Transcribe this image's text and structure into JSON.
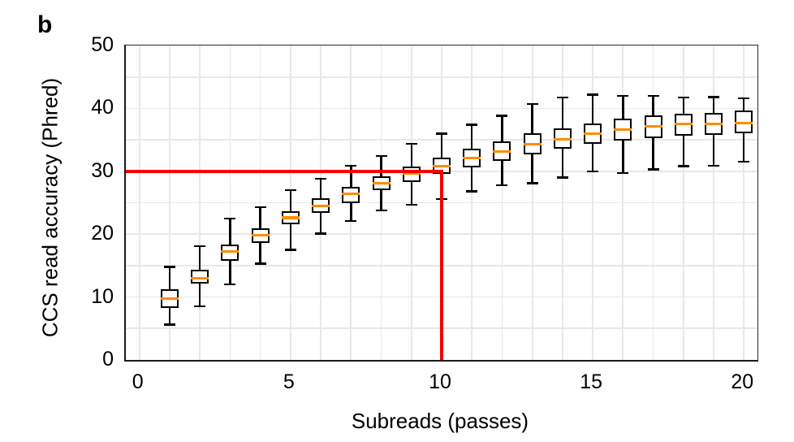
{
  "panel_label": "b",
  "chart_data": {
    "type": "box",
    "title": "",
    "xlabel": "Subreads (passes)",
    "ylabel": "CCS read accuracy (Phred)",
    "xlim": [
      -0.45,
      20.45
    ],
    "ylim": [
      0,
      50
    ],
    "x_ticks": [
      0,
      5,
      10,
      15,
      20
    ],
    "y_ticks": [
      0,
      10,
      20,
      30,
      40,
      50
    ],
    "grid": {
      "vertical_step": 1,
      "horizontal_step": 5,
      "color": "#e9e7e7"
    },
    "legend": "none",
    "boxes": [
      {
        "x": 1,
        "whisker_low": 5.6,
        "q1": 8.3,
        "median": 9.8,
        "q3": 11.2,
        "whisker_high": 14.8
      },
      {
        "x": 2,
        "whisker_low": 8.5,
        "q1": 12.1,
        "median": 13.0,
        "q3": 14.4,
        "whisker_high": 18.1
      },
      {
        "x": 3,
        "whisker_low": 12.0,
        "q1": 15.7,
        "median": 17.2,
        "q3": 18.4,
        "whisker_high": 22.5
      },
      {
        "x": 4,
        "whisker_low": 15.3,
        "q1": 18.6,
        "median": 19.8,
        "q3": 20.9,
        "whisker_high": 24.3
      },
      {
        "x": 5,
        "whisker_low": 17.5,
        "q1": 21.6,
        "median": 22.6,
        "q3": 23.7,
        "whisker_high": 27.0
      },
      {
        "x": 6,
        "whisker_low": 20.1,
        "q1": 23.4,
        "median": 24.5,
        "q3": 25.7,
        "whisker_high": 28.8
      },
      {
        "x": 7,
        "whisker_low": 22.1,
        "q1": 24.9,
        "median": 26.4,
        "q3": 27.5,
        "whisker_high": 30.9
      },
      {
        "x": 8,
        "whisker_low": 23.8,
        "q1": 27.0,
        "median": 28.1,
        "q3": 29.2,
        "whisker_high": 32.4
      },
      {
        "x": 9,
        "whisker_low": 24.7,
        "q1": 28.3,
        "median": 29.6,
        "q3": 30.8,
        "whisker_high": 34.4
      },
      {
        "x": 10,
        "whisker_low": 25.6,
        "q1": 29.6,
        "median": 30.8,
        "q3": 32.2,
        "whisker_high": 36.0
      },
      {
        "x": 11,
        "whisker_low": 26.8,
        "q1": 30.6,
        "median": 32.1,
        "q3": 33.6,
        "whisker_high": 37.4
      },
      {
        "x": 12,
        "whisker_low": 27.8,
        "q1": 31.7,
        "median": 33.1,
        "q3": 34.8,
        "whisker_high": 38.8
      },
      {
        "x": 13,
        "whisker_low": 28.1,
        "q1": 32.7,
        "median": 34.3,
        "q3": 36.0,
        "whisker_high": 40.7
      },
      {
        "x": 14,
        "whisker_low": 29.0,
        "q1": 33.6,
        "median": 35.1,
        "q3": 36.8,
        "whisker_high": 41.7
      },
      {
        "x": 15,
        "whisker_low": 30.0,
        "q1": 34.4,
        "median": 36.0,
        "q3": 37.6,
        "whisker_high": 42.2
      },
      {
        "x": 16,
        "whisker_low": 29.7,
        "q1": 34.9,
        "median": 36.6,
        "q3": 38.4,
        "whisker_high": 42.0
      },
      {
        "x": 17,
        "whisker_low": 30.3,
        "q1": 35.3,
        "median": 37.1,
        "q3": 38.9,
        "whisker_high": 42.0
      },
      {
        "x": 18,
        "whisker_low": 30.8,
        "q1": 35.6,
        "median": 37.5,
        "q3": 39.2,
        "whisker_high": 41.7
      },
      {
        "x": 19,
        "whisker_low": 30.9,
        "q1": 35.8,
        "median": 37.5,
        "q3": 39.3,
        "whisker_high": 41.8
      },
      {
        "x": 20,
        "whisker_low": 31.5,
        "q1": 36.0,
        "median": 37.7,
        "q3": 39.6,
        "whisker_high": 41.6
      }
    ],
    "reference_lines": [
      {
        "orientation": "horizontal",
        "y": 30,
        "x_from_axis": true,
        "x_to": 10
      },
      {
        "orientation": "vertical",
        "x": 10,
        "y_from": 0,
        "y_to": 30
      }
    ],
    "colors": {
      "box_edge": "#000000",
      "box_fill": "#ffffff",
      "median": "#ff8c00",
      "reference": "#f70000",
      "grid": "#e9e7e7",
      "axis": "#1a1a1a",
      "text": "#000000"
    }
  }
}
